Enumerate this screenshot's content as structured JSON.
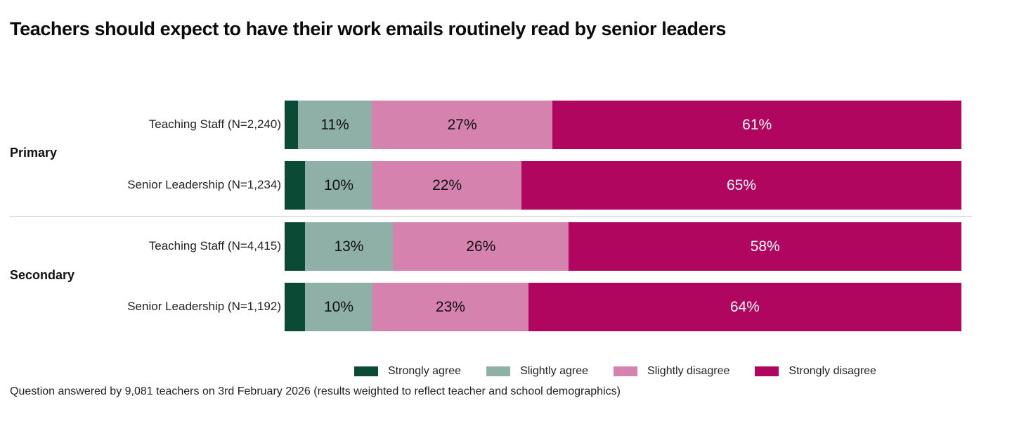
{
  "chart_data": {
    "type": "bar",
    "orientation": "horizontal-stacked-100",
    "title": "Teachers should expect to have their work emails routinely read by senior leaders",
    "groups": [
      {
        "name": "Primary",
        "rows": [
          {
            "label": "Teaching Staff (N=2,240)",
            "values": [
              2,
              11,
              27,
              61
            ],
            "data_labels": [
              "",
              "11%",
              "27%",
              "61%"
            ]
          },
          {
            "label": "Senior Leadership (N=1,234)",
            "values": [
              3,
              10,
              22,
              65
            ],
            "data_labels": [
              "",
              "10%",
              "22%",
              "65%"
            ]
          }
        ]
      },
      {
        "name": "Secondary",
        "rows": [
          {
            "label": "Teaching Staff (N=4,415)",
            "values": [
              3,
              13,
              26,
              58
            ],
            "data_labels": [
              "",
              "13%",
              "26%",
              "58%"
            ]
          },
          {
            "label": "Senior Leadership (N=1,192)",
            "values": [
              3,
              10,
              23,
              64
            ],
            "data_labels": [
              "",
              "10%",
              "23%",
              "64%"
            ]
          }
        ]
      }
    ],
    "series": [
      {
        "name": "Strongly agree",
        "color": "#0b4a35",
        "label_color": "#ffffff"
      },
      {
        "name": "Slightly agree",
        "color": "#8fb0a6",
        "label_color": "#111111"
      },
      {
        "name": "Slightly disagree",
        "color": "#d582af",
        "label_color": "#111111"
      },
      {
        "name": "Strongly disagree",
        "color": "#b0065f",
        "label_color": "#ffffff"
      }
    ],
    "xlim": [
      0,
      100
    ],
    "legend_position": "bottom",
    "grid": false
  },
  "footer": "Question answered by 9,081 teachers on 3rd February 2026 (results weighted to reflect teacher and school demographics)"
}
